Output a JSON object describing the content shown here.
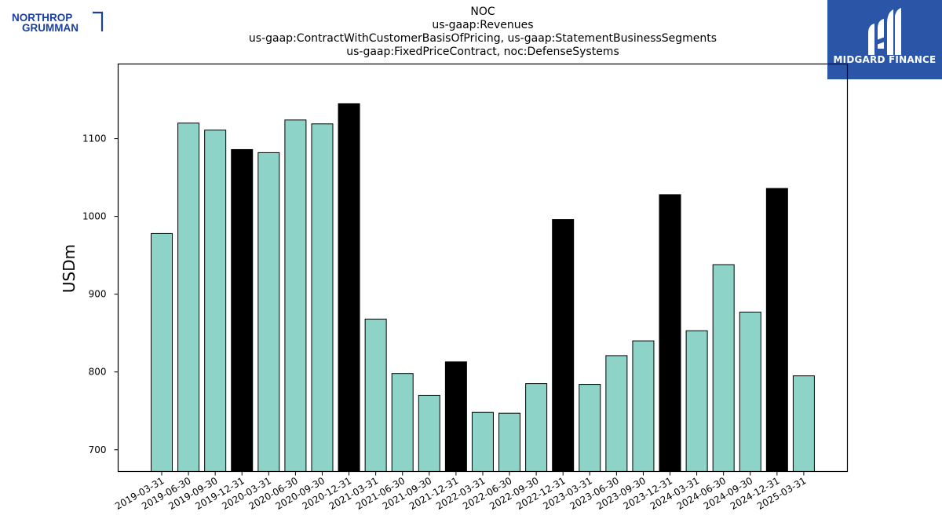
{
  "header": {
    "title_lines": [
      "NOC",
      "us-gaap:Revenues",
      "us-gaap:ContractWithCustomerBasisOfPricing, us-gaap:StatementBusinessSegments",
      "us-gaap:FixedPriceContract, noc:DefenseSystems"
    ]
  },
  "logos": {
    "left": {
      "line1": "NORTHROP",
      "line2": "GRUMMAN",
      "color": "#1a3fa0"
    },
    "right": {
      "text": "MIDGARD FINANCE",
      "background": "#2b56a8"
    }
  },
  "chart_data": {
    "type": "bar",
    "title": "NOC\nus-gaap:Revenues\nus-gaap:ContractWithCustomerBasisOfPricing, us-gaap:StatementBusinessSegments\nus-gaap:FixedPriceContract, noc:DefenseSystems",
    "xlabel": "",
    "ylabel": "USDm",
    "ylim": [
      672,
      1196
    ],
    "yticks": [
      700,
      800,
      900,
      1000,
      1100
    ],
    "grid": false,
    "colors": {
      "quarter": "#8dd3c7",
      "year_end": "#000000",
      "edge": "#000000"
    },
    "categories": [
      "2019-03-31",
      "2019-06-30",
      "2019-09-30",
      "2019-12-31",
      "2020-03-31",
      "2020-06-30",
      "2020-09-30",
      "2020-12-31",
      "2021-03-31",
      "2021-06-30",
      "2021-09-30",
      "2021-12-31",
      "2022-03-31",
      "2022-06-30",
      "2022-09-30",
      "2022-12-31",
      "2023-03-31",
      "2023-06-30",
      "2023-09-30",
      "2023-12-31",
      "2024-03-31",
      "2024-06-30",
      "2024-09-30",
      "2024-12-31",
      "2025-03-31"
    ],
    "values": [
      978,
      1120,
      1111,
      1086,
      1082,
      1124,
      1119,
      1145,
      868,
      798,
      770,
      813,
      748,
      747,
      785,
      996,
      784,
      821,
      840,
      1028,
      853,
      938,
      877,
      1036,
      795
    ]
  }
}
